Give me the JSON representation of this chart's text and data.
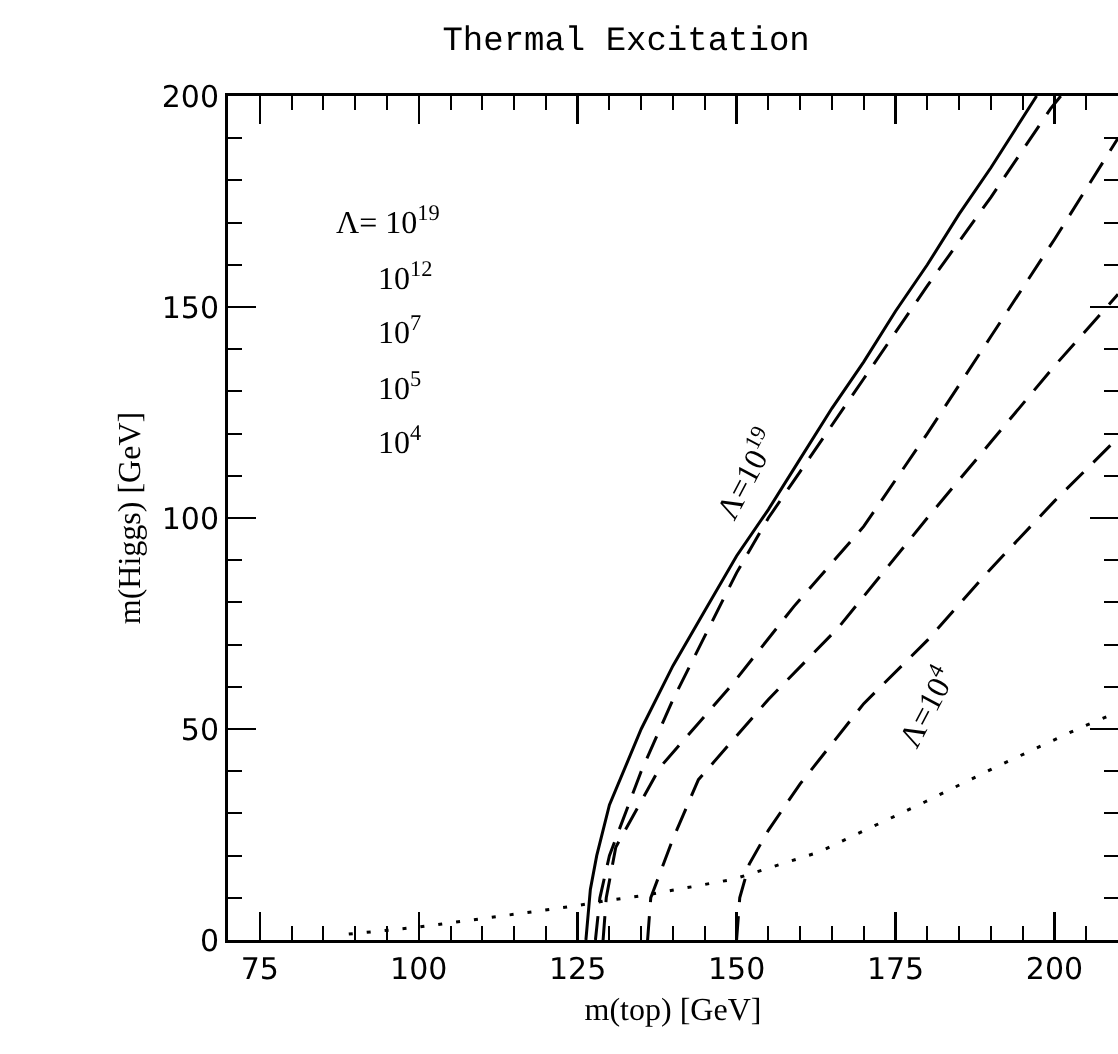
{
  "chart_data": {
    "type": "line",
    "title": "Thermal Excitation",
    "xlabel": "m(top) [GeV]",
    "ylabel": "m(Higgs) [GeV]",
    "xlim": [
      70,
      210
    ],
    "ylim": [
      0,
      200
    ],
    "xticks": [
      75,
      {
        "value": 80,
        "label": null
      },
      {
        "value": 85,
        "label": null
      },
      {
        "value": 90,
        "label": null
      },
      {
        "value": 95,
        "label": null
      },
      100,
      {
        "value": 105,
        "label": null
      },
      {
        "value": 110,
        "label": null
      },
      {
        "value": 115,
        "label": null
      },
      {
        "value": 120,
        "label": null
      },
      125,
      {
        "value": 130,
        "label": null
      },
      {
        "value": 135,
        "label": null
      },
      {
        "value": 140,
        "label": null
      },
      {
        "value": 145,
        "label": null
      },
      150,
      {
        "value": 155,
        "label": null
      },
      {
        "value": 160,
        "label": null
      },
      {
        "value": 165,
        "label": null
      },
      {
        "value": 170,
        "label": null
      },
      175,
      {
        "value": 180,
        "label": null
      },
      {
        "value": 185,
        "label": null
      },
      {
        "value": 190,
        "label": null
      },
      {
        "value": 195,
        "label": null
      },
      200,
      {
        "value": 205,
        "label": null
      }
    ],
    "yticks": [
      0,
      {
        "value": 10,
        "label": null
      },
      {
        "value": 20,
        "label": null
      },
      {
        "value": 30,
        "label": null
      },
      {
        "value": 40,
        "label": null
      },
      50,
      {
        "value": 60,
        "label": null
      },
      {
        "value": 70,
        "label": null
      },
      {
        "value": 80,
        "label": null
      },
      {
        "value": 90,
        "label": null
      },
      100,
      {
        "value": 110,
        "label": null
      },
      {
        "value": 120,
        "label": null
      },
      {
        "value": 130,
        "label": null
      },
      {
        "value": 140,
        "label": null
      },
      150,
      {
        "value": 160,
        "label": null
      },
      {
        "value": 170,
        "label": null
      },
      {
        "value": 180,
        "label": null
      },
      {
        "value": 190,
        "label": null
      },
      200
    ],
    "grid": false,
    "marker": "none",
    "series": [
      {
        "color": "#000000",
        "line_style": "solid",
        "x": [
          126.3,
          127,
          128,
          130,
          135,
          140,
          145,
          150,
          155,
          160,
          165,
          170,
          175,
          180,
          185,
          190,
          197.2
        ],
        "values": [
          0,
          12,
          20,
          32,
          50,
          65,
          78,
          91,
          102,
          114,
          126,
          137,
          149,
          160,
          172,
          183,
          200
        ]
      },
      {
        "color": "#000000",
        "line_style": "dashed",
        "x": [
          127.8,
          128.5,
          130,
          135,
          140,
          145,
          150,
          155,
          160,
          170,
          180,
          190,
          199.4,
          201
        ],
        "values": [
          0,
          10,
          20,
          40,
          57,
          72,
          87,
          100,
          111,
          133,
          155,
          176,
          197,
          200
        ]
      },
      {
        "color": "#000000",
        "line_style": "dashed",
        "x": [
          129,
          129.5,
          131,
          138,
          149,
          159,
          170,
          180,
          190,
          200,
          210
        ],
        "values": [
          0,
          10,
          22,
          41,
          60,
          79,
          98,
          120,
          143,
          166,
          190
        ]
      },
      {
        "color": "#000000",
        "line_style": "dashed",
        "x": [
          136,
          136.5,
          140,
          144,
          155,
          166,
          180,
          190,
          200,
          210
        ],
        "values": [
          0,
          10,
          24,
          38,
          57,
          74,
          100,
          118,
          136,
          153
        ]
      },
      {
        "color": "#000000",
        "line_style": "dashed",
        "x": [
          150,
          150.5,
          152,
          155,
          160,
          170,
          180,
          190,
          200,
          210
        ],
        "values": [
          0,
          10,
          18,
          26,
          37,
          56,
          71,
          88,
          104,
          119
        ]
      },
      {
        "color": "#000000",
        "line_style": "dotted",
        "x": [
          89,
          99.7,
          112.6,
          124.7,
          129.4,
          136,
          149.5,
          162.9,
          179.6,
          190.8,
          204.2,
          210
        ],
        "values": [
          1.4,
          3,
          5.6,
          8.1,
          9.3,
          10.7,
          14.4,
          20.8,
          32.7,
          41,
          50.4,
          54
        ]
      }
    ],
    "annotations": [
      {
        "text": "Λ=10$^{19}$",
        "x": 155,
        "y": 102
      },
      {
        "text": "Λ=10$^{4}$",
        "x": 180,
        "y": 71
      },
      "Λ= 10$^{19}$",
      "10$^{12}$",
      "10$^{7}$",
      "10$^{5}$",
      "10$^{4}$"
    ]
  }
}
